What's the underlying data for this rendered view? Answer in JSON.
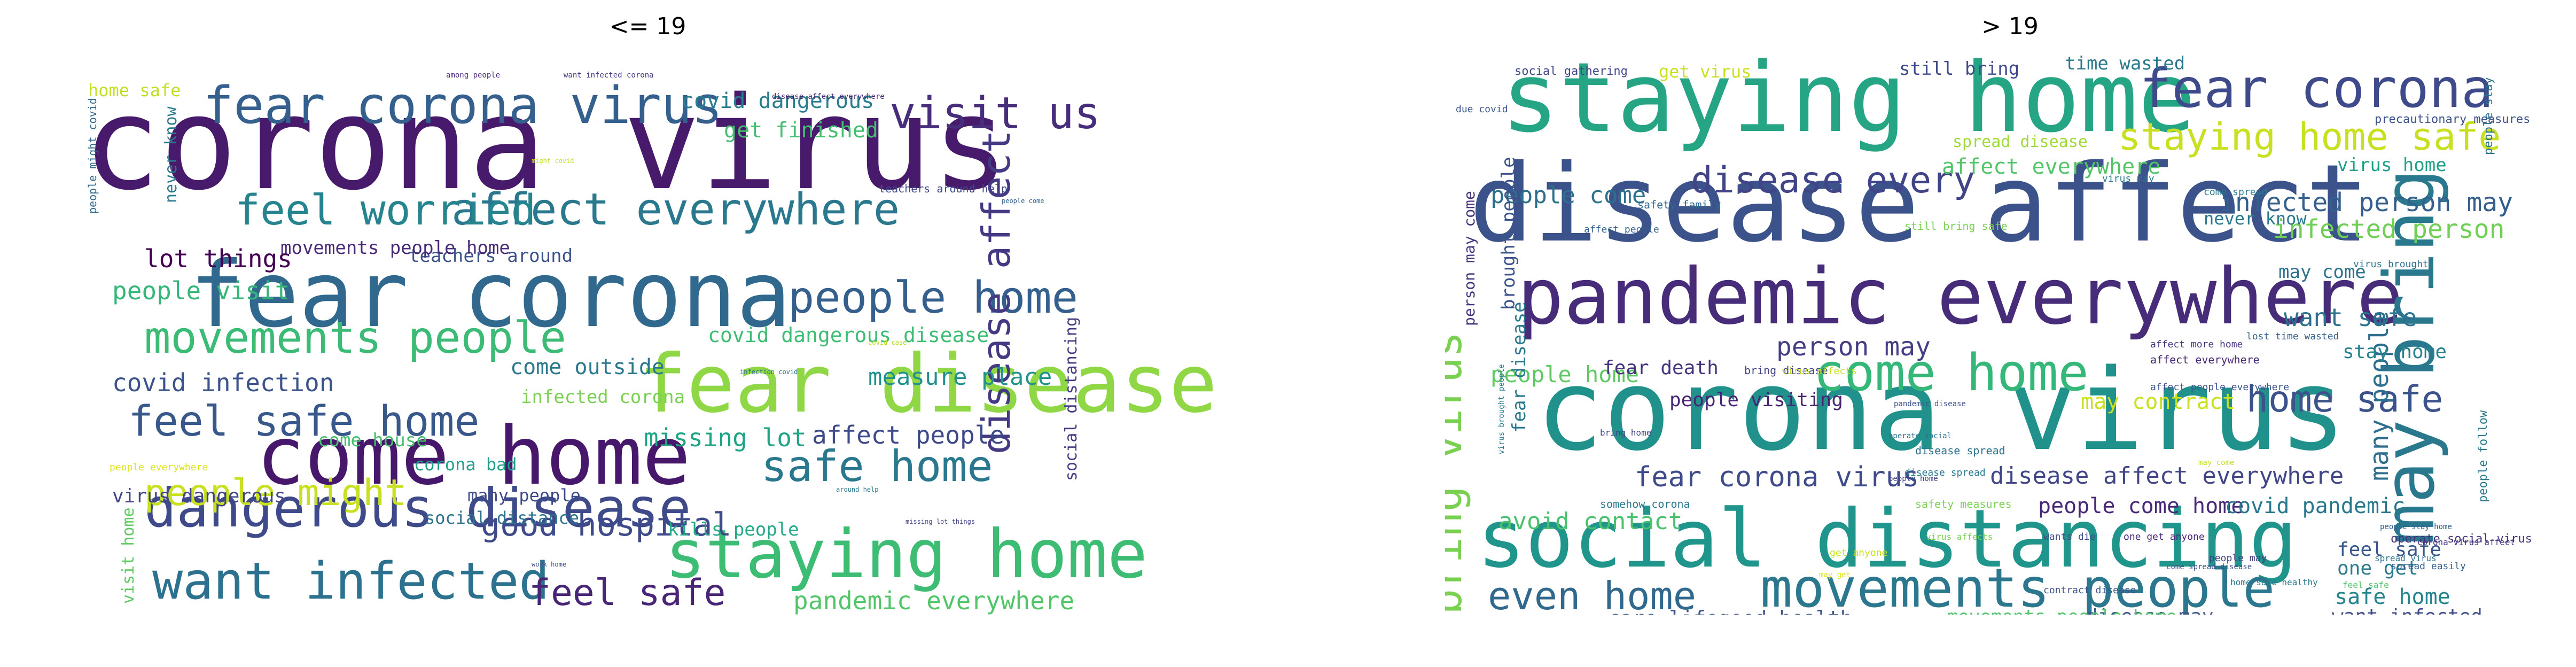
{
  "chart_data": [
    {
      "type": "wordcloud",
      "title": "<= 19",
      "words": [
        {
          "text": "corona virus",
          "color": "#481a6c"
        },
        {
          "text": "fear corona",
          "color": "#31688e"
        },
        {
          "text": "fear disease",
          "color": "#8fd744"
        },
        {
          "text": "come home",
          "color": "#46176a"
        },
        {
          "text": "staying home",
          "color": "#3dbc74"
        },
        {
          "text": "dangerous disease",
          "color": "#3e4a89"
        },
        {
          "text": "want infected",
          "color": "#2c718e"
        },
        {
          "text": "fear corona virus",
          "color": "#35608d"
        },
        {
          "text": "affect everywhere",
          "color": "#2a788e"
        },
        {
          "text": "movements people",
          "color": "#3bbb75"
        },
        {
          "text": "people home",
          "color": "#355f8d"
        },
        {
          "text": "feel safe home",
          "color": "#38588c"
        },
        {
          "text": "safe home",
          "color": "#2a788e"
        },
        {
          "text": "feel worried",
          "color": "#25848e"
        },
        {
          "text": "visit us",
          "color": "#472d7b"
        },
        {
          "text": "disease affect",
          "color": "#443983"
        },
        {
          "text": "people might",
          "color": "#c8e020"
        },
        {
          "text": "good hospital",
          "color": "#3e4a89"
        },
        {
          "text": "feel safe",
          "color": "#482576"
        },
        {
          "text": "pandemic everywhere",
          "color": "#52c569"
        },
        {
          "text": "covid dangerous",
          "color": "#287d8e"
        },
        {
          "text": "get finished",
          "color": "#43bf71"
        },
        {
          "text": "lot things",
          "color": "#440154"
        },
        {
          "text": "people visit",
          "color": "#35b779"
        },
        {
          "text": "covid infection",
          "color": "#3b528b"
        },
        {
          "text": "missing lot",
          "color": "#20a486"
        },
        {
          "text": "affect people",
          "color": "#3e4989"
        },
        {
          "text": "measure place",
          "color": "#21918c"
        },
        {
          "text": "covid dangerous disease",
          "color": "#3dbc74"
        },
        {
          "text": "come outside",
          "color": "#2a788e"
        },
        {
          "text": "infected corona",
          "color": "#7ad151"
        },
        {
          "text": "come house",
          "color": "#46c06f"
        },
        {
          "text": "corona bad",
          "color": "#1fa088"
        },
        {
          "text": "many people",
          "color": "#3e4a89"
        },
        {
          "text": "social distance",
          "color": "#2c718e"
        },
        {
          "text": "virus dangerous",
          "color": "#414487"
        },
        {
          "text": "kills people",
          "color": "#22a884"
        },
        {
          "text": "teachers around",
          "color": "#3b528b"
        },
        {
          "text": "movements people home",
          "color": "#482878"
        },
        {
          "text": "social distancing",
          "color": "#443983"
        },
        {
          "text": "home safe",
          "color": "#c0df25"
        },
        {
          "text": "never know",
          "color": "#2a788e"
        },
        {
          "text": "visit home",
          "color": "#5ec962"
        },
        {
          "text": "infected corona virus",
          "color": "#b5de2b"
        },
        {
          "text": "people might covid",
          "color": "#31688e"
        },
        {
          "text": "teachers around help",
          "color": "#3e4a89"
        },
        {
          "text": "among people",
          "color": "#482878"
        },
        {
          "text": "want infected corona",
          "color": "#453781"
        },
        {
          "text": "disease affect everywhere",
          "color": "#482576"
        },
        {
          "text": "people everywhere",
          "color": "#dde318"
        },
        {
          "text": "work home",
          "color": "#3e4a89"
        },
        {
          "text": "around help",
          "color": "#2a788e"
        },
        {
          "text": "missing lot things",
          "color": "#414487"
        },
        {
          "text": "people come",
          "color": "#355f8d"
        },
        {
          "text": "covid case",
          "color": "#b5de2b"
        },
        {
          "text": "infection covid",
          "color": "#2c718e"
        },
        {
          "text": "might covid",
          "color": "#c2df23"
        }
      ]
    },
    {
      "type": "wordcloud",
      "title": "> 19",
      "words": [
        {
          "text": "corona virus",
          "color": "#21918c"
        },
        {
          "text": "disease affect",
          "color": "#3b528b"
        },
        {
          "text": "staying home",
          "color": "#25a584"
        },
        {
          "text": "pandemic everywhere",
          "color": "#472c7a"
        },
        {
          "text": "social distancing",
          "color": "#1f958b"
        },
        {
          "text": "may bring",
          "color": "#2a788e"
        },
        {
          "text": "fear corona",
          "color": "#3e4a89"
        },
        {
          "text": "movements people",
          "color": "#2a778e"
        },
        {
          "text": "come home",
          "color": "#35b779"
        },
        {
          "text": "staying home safe",
          "color": "#c8e020"
        },
        {
          "text": "disease every",
          "color": "#414487"
        },
        {
          "text": "home safe",
          "color": "#3b528b"
        },
        {
          "text": "bring virus",
          "color": "#7ad151"
        },
        {
          "text": "even home",
          "color": "#31688e"
        },
        {
          "text": "fear corona virus",
          "color": "#3e4a89"
        },
        {
          "text": "infected person may",
          "color": "#355f8d"
        },
        {
          "text": "infected person",
          "color": "#70cf57"
        },
        {
          "text": "person may",
          "color": "#433e85"
        },
        {
          "text": "want safe",
          "color": "#2c728e"
        },
        {
          "text": "many people",
          "color": "#2e6e8e"
        },
        {
          "text": "disease affect everywhere",
          "color": "#404688"
        },
        {
          "text": "people come",
          "color": "#2d708e"
        },
        {
          "text": "affect everywhere",
          "color": "#52c569"
        },
        {
          "text": "may contract",
          "color": "#c8e020"
        },
        {
          "text": "people home",
          "color": "#5ec962"
        },
        {
          "text": "avoid contact",
          "color": "#4ac16d"
        },
        {
          "text": "people come home",
          "color": "#482878"
        },
        {
          "text": "covid pandemic",
          "color": "#2a788e"
        },
        {
          "text": "safe home",
          "color": "#25848e"
        },
        {
          "text": "want infected",
          "color": "#3e4a89"
        },
        {
          "text": "disease may",
          "color": "#3b528b"
        },
        {
          "text": "one get",
          "color": "#287c8e"
        },
        {
          "text": "feel safe",
          "color": "#38588c"
        },
        {
          "text": "movements people home",
          "color": "#52c569"
        },
        {
          "text": "care lifegood health",
          "color": "#3b528b"
        },
        {
          "text": "fear death",
          "color": "#46337e"
        },
        {
          "text": "people visiting",
          "color": "#482475"
        },
        {
          "text": "stay home",
          "color": "#26828e"
        },
        {
          "text": "may come",
          "color": "#2c718e"
        },
        {
          "text": "never know",
          "color": "#2a788e"
        },
        {
          "text": "time wasted",
          "color": "#2a788e"
        },
        {
          "text": "still bring",
          "color": "#3e4a89"
        },
        {
          "text": "get virus",
          "color": "#c8e020"
        },
        {
          "text": "social gathering",
          "color": "#404688"
        },
        {
          "text": "brought people",
          "color": "#3b528b"
        },
        {
          "text": "person may come",
          "color": "#46337e"
        },
        {
          "text": "fear disease",
          "color": "#2a788e"
        },
        {
          "text": "virus home",
          "color": "#1fa088"
        },
        {
          "text": "spread disease",
          "color": "#a0da39"
        },
        {
          "text": "precautionary measures",
          "color": "#3b528b"
        },
        {
          "text": "safety family",
          "color": "#31688e"
        },
        {
          "text": "still bring safe",
          "color": "#7ad151"
        },
        {
          "text": "affect people",
          "color": "#355f8d"
        },
        {
          "text": "people stay",
          "color": "#2c718e"
        },
        {
          "text": "bring disease",
          "color": "#414487"
        },
        {
          "text": "virus affects",
          "color": "#c2df23"
        },
        {
          "text": "affect everywhere",
          "color": "#482878"
        },
        {
          "text": "affect people everywhere",
          "color": "#3b528b"
        },
        {
          "text": "people follow",
          "color": "#2a788e"
        },
        {
          "text": "operate social virus",
          "color": "#46337e"
        },
        {
          "text": "disease spread",
          "color": "#2c718e"
        },
        {
          "text": "spread easily",
          "color": "#355f8d"
        },
        {
          "text": "wants die",
          "color": "#3e4a89"
        },
        {
          "text": "one get anyone",
          "color": "#482878"
        },
        {
          "text": "corona virus affect",
          "color": "#46337e"
        },
        {
          "text": "home safe healthy",
          "color": "#2a788e"
        },
        {
          "text": "contract disease",
          "color": "#3b528b"
        },
        {
          "text": "people may",
          "color": "#433e85"
        },
        {
          "text": "virus brought",
          "color": "#2c718e"
        },
        {
          "text": "safety measures",
          "color": "#7ad151"
        },
        {
          "text": "somehow corona",
          "color": "#2a788e"
        },
        {
          "text": "due covid",
          "color": "#3b528b"
        },
        {
          "text": "lost time wasted",
          "color": "#355f8d"
        },
        {
          "text": "affect more home",
          "color": "#46337e"
        },
        {
          "text": "come spread",
          "color": "#2a788e"
        },
        {
          "text": "spread virus",
          "color": "#2c718e"
        },
        {
          "text": "disease spread",
          "color": "#2a788e"
        },
        {
          "text": "get anyone",
          "color": "#c8e020"
        },
        {
          "text": "home disease may",
          "color": "#70cf57"
        },
        {
          "text": "may get",
          "color": "#dde318"
        },
        {
          "text": "virus brought people",
          "color": "#2a788e"
        },
        {
          "text": "pandemic disease",
          "color": "#3b528b"
        },
        {
          "text": "people stay home",
          "color": "#355f8d"
        },
        {
          "text": "people home",
          "color": "#404688"
        },
        {
          "text": "may come",
          "color": "#c2df23"
        },
        {
          "text": "operate social",
          "color": "#2c718e"
        },
        {
          "text": "virus affects",
          "color": "#7ad151"
        },
        {
          "text": "come spread disease",
          "color": "#3b528b"
        },
        {
          "text": "feel safe",
          "color": "#52c569"
        },
        {
          "text": "bring home",
          "color": "#414487"
        },
        {
          "text": "virus may",
          "color": "#2a788e"
        }
      ]
    }
  ]
}
